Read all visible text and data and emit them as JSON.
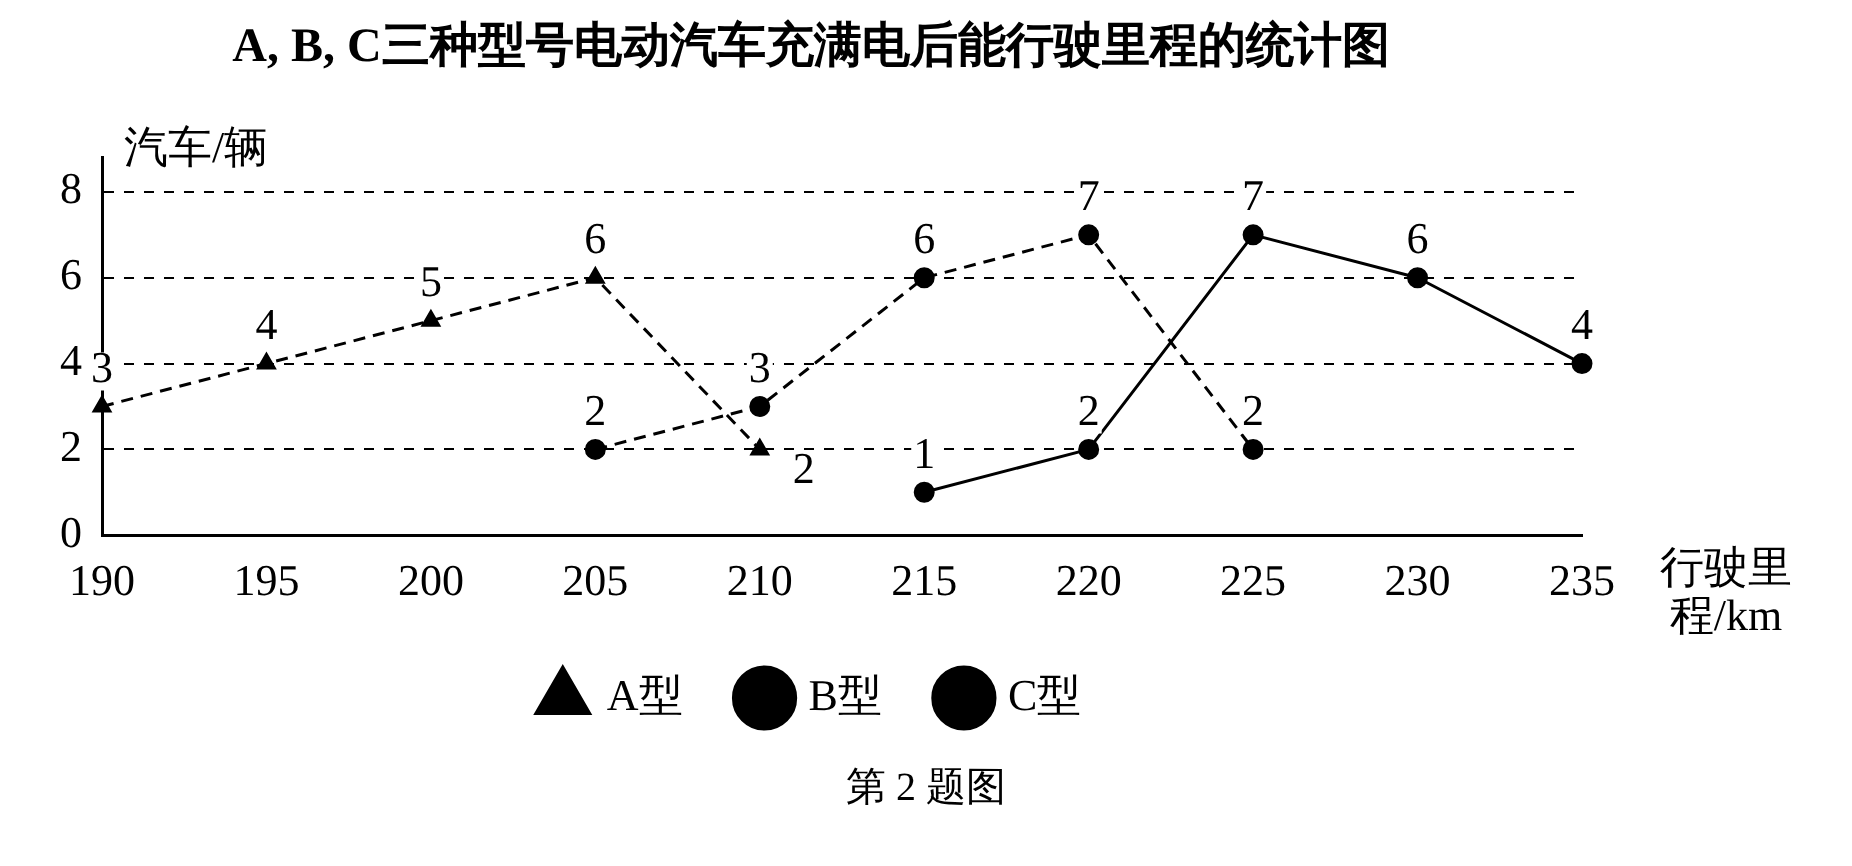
{
  "chart_data": {
    "type": "line",
    "title": "A, B, C三种型号电动汽车充满电后能行驶里程的统计图",
    "xlabel": "行驶里程/km",
    "ylabel": "汽车/辆",
    "annotations": [
      "第 2 题图"
    ],
    "categories": [
      "190",
      "195",
      "200",
      "205",
      "210",
      "215",
      "220",
      "225",
      "230",
      "235"
    ],
    "ylim": [
      0,
      8.8
    ],
    "yticks": [
      0,
      2,
      4,
      6,
      8
    ],
    "grid": "y",
    "legend": "bottom",
    "data_labels": true,
    "series": [
      {
        "name": "A型",
        "color": "#000000",
        "marker": "triangle",
        "line_style": "dashed",
        "values": [
          3,
          4,
          5,
          6,
          2,
          null,
          null,
          null,
          null,
          null
        ]
      },
      {
        "name": "B型",
        "color": "#000000",
        "marker": "circle",
        "line_style": "dashed",
        "values": [
          null,
          null,
          null,
          2,
          3,
          6,
          7,
          2,
          null,
          null
        ]
      },
      {
        "name": "C型",
        "color": "#000000",
        "marker": "circle",
        "line_style": "solid",
        "values": [
          null,
          null,
          null,
          null,
          null,
          1,
          2,
          7,
          6,
          4
        ]
      }
    ]
  }
}
